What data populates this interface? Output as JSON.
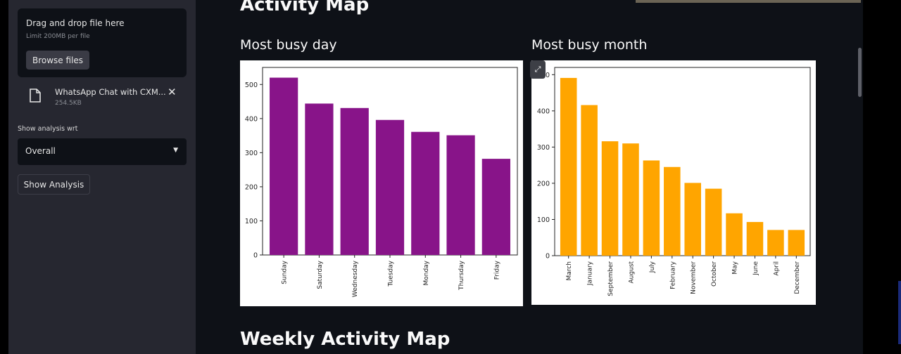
{
  "sidebar": {
    "uploader": {
      "title": "Drag and drop file here",
      "limit": "Limit 200MB per file",
      "browse_label": "Browse files"
    },
    "file": {
      "name": "WhatsApp Chat with CXM...",
      "size": "254.5KB",
      "icon": "file-icon"
    },
    "select_label": "Show analysis wrt",
    "select_value": "Overall",
    "show_button": "Show Analysis"
  },
  "main": {
    "title": "Activity Map",
    "day_subtitle": "Most busy day",
    "month_subtitle": "Most busy month",
    "weekly_title": "Weekly Activity Map"
  },
  "colors": {
    "day_bar": "#881489",
    "month_bar": "#ffa500"
  },
  "chart_data": [
    {
      "type": "bar",
      "title": "",
      "categories": [
        "Sunday",
        "Saturday",
        "Wednesday",
        "Tuesday",
        "Monday",
        "Thursday",
        "Friday"
      ],
      "values": [
        520,
        444,
        431,
        396,
        361,
        351,
        282
      ],
      "ylim": [
        0,
        550
      ],
      "yticks": [
        0,
        100,
        200,
        300,
        400,
        500
      ],
      "color": "#881489"
    },
    {
      "type": "bar",
      "title": "",
      "categories": [
        "March",
        "January",
        "September",
        "August",
        "July",
        "February",
        "November",
        "October",
        "May",
        "June",
        "April",
        "December"
      ],
      "values": [
        491,
        416,
        316,
        310,
        263,
        245,
        201,
        185,
        117,
        93,
        71,
        71
      ],
      "ylim": [
        0,
        520
      ],
      "yticks": [
        0,
        100,
        200,
        300,
        400,
        500
      ],
      "color": "#ffa500"
    }
  ]
}
